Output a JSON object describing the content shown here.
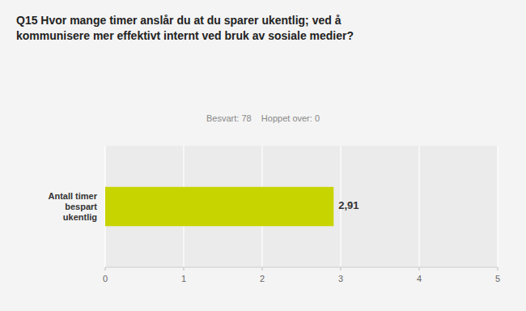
{
  "chart_data": {
    "type": "bar",
    "orientation": "horizontal",
    "title": "Q15 Hvor mange timer anslår du at du sparer ukentlig; ved å\nkommunisere mer effektivt internt ved bruk av sosiale medier?",
    "subtitle": "Besvart: 78    Hoppet over: 0",
    "categories": [
      "Antall timer\nbespart\nukentlig"
    ],
    "values": [
      2.91
    ],
    "value_labels": [
      "2,91"
    ],
    "data_labels": true,
    "color": "#c8d400",
    "xlim": [
      0,
      5
    ],
    "xticks": [
      0,
      1,
      2,
      3,
      4,
      5
    ],
    "grid": true
  }
}
